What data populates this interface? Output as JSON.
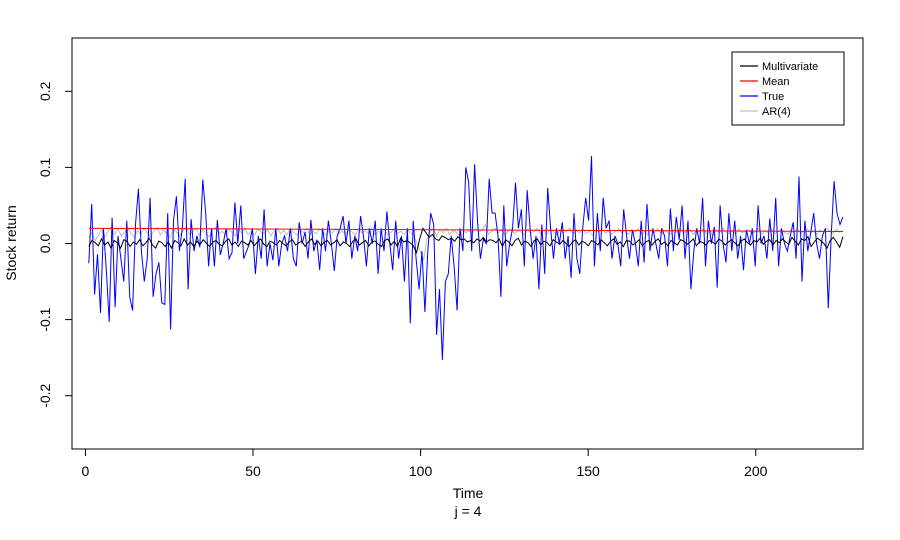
{
  "chart_data": {
    "type": "line",
    "xlabel": "Time",
    "sublabel": "j = 4",
    "ylabel": "Stock return",
    "xlim": [
      -4,
      232
    ],
    "ylim": [
      -0.27,
      0.27
    ],
    "xticks": [
      0,
      50,
      100,
      150,
      200
    ],
    "yticks": [
      -0.2,
      -0.1,
      0.0,
      0.1,
      0.2
    ],
    "xtick_labels": [
      "0",
      "50",
      "100",
      "150",
      "200"
    ],
    "ytick_labels": [
      "-0.2",
      "-0.1",
      "0.0",
      "0.1",
      "0.2"
    ],
    "grid": false,
    "legend_position": "top-right",
    "series": [
      {
        "name": "Multivariate",
        "color": "#000000",
        "values": [
          -0.004,
          0.004,
          0.001,
          -0.003,
          0.006,
          -0.002,
          0.002,
          -0.006,
          0.004,
          0.001,
          -0.006,
          0.005,
          0.003,
          -0.004,
          0.002,
          -0.001,
          0.005,
          -0.003,
          0.001,
          0.007,
          -0.002,
          -0.006,
          0.003,
          0.001,
          -0.004,
          0.002,
          -0.006,
          0.004,
          0.001,
          -0.003,
          0.006,
          -0.002,
          0.002,
          -0.004,
          0.003,
          -0.001,
          0.005,
          0.0,
          -0.004,
          0.002,
          0.004,
          -0.001,
          -0.003,
          0.003,
          0.006,
          -0.002,
          0.002,
          -0.004,
          0.003,
          0.001,
          -0.002,
          0.004,
          -0.003,
          0.002,
          0.006,
          -0.001,
          -0.004,
          0.003,
          0.001,
          -0.002,
          0.004,
          0.0,
          -0.003,
          0.002,
          0.005,
          -0.002,
          0.001,
          0.003,
          -0.004,
          0.002,
          0.006,
          -0.001,
          0.003,
          -0.003,
          0.002,
          0.004,
          -0.002,
          0.001,
          0.005,
          -0.003,
          0.002,
          0.0,
          -0.004,
          0.003,
          0.006,
          -0.002,
          0.001,
          0.004,
          -0.003,
          0.002,
          0.003,
          -0.001,
          -0.004,
          0.004,
          0.006,
          -0.002,
          0.003,
          -0.004,
          0.007,
          0.002,
          0.004,
          0.001,
          -0.003,
          -0.012,
          0.006,
          0.02,
          0.014,
          0.008,
          0.012,
          0.006,
          0.004,
          0.01,
          0.008,
          0.005,
          0.007,
          0.003,
          0.009,
          0.005,
          0.006,
          0.002,
          0.004,
          0.001,
          0.006,
          0.003,
          0.008,
          0.002,
          0.005,
          0.004,
          0.001,
          0.006,
          -0.004,
          0.005,
          0.002,
          -0.003,
          0.004,
          0.007,
          -0.002,
          0.003,
          0.001,
          -0.004,
          0.004,
          0.006,
          -0.002,
          0.003,
          0.001,
          -0.003,
          0.005,
          0.002,
          -0.001,
          0.004,
          0.0,
          -0.004,
          0.002,
          0.005,
          -0.002,
          0.003,
          0.001,
          -0.003,
          0.004,
          0.002,
          -0.002,
          0.005,
          0.001,
          -0.003,
          0.003,
          0.006,
          -0.001,
          0.002,
          -0.004,
          0.004,
          0.003,
          -0.002,
          0.001,
          0.005,
          -0.003,
          0.002,
          0.004,
          -0.002,
          0.003,
          0.006,
          -0.001,
          0.002,
          -0.003,
          0.004,
          0.001,
          -0.002,
          0.005,
          0.003,
          -0.001,
          0.002,
          0.006,
          -0.003,
          0.003,
          0.001,
          -0.002,
          0.004,
          0.002,
          -0.001,
          0.006,
          0.003,
          -0.002,
          0.002,
          0.005,
          0.001,
          -0.003,
          0.003,
          0.006,
          0.001,
          -0.002,
          0.004,
          0.002,
          0.007,
          -0.001,
          0.003,
          0.005,
          -0.002,
          0.004,
          0.001,
          0.006,
          0.002,
          -0.001,
          0.008,
          0.003,
          -0.002,
          0.006,
          0.004,
          0.009,
          -0.004,
          0.002,
          0.007,
          0.004,
          0.0,
          -0.006,
          0.004,
          0.008,
          0.002,
          -0.005,
          0.009
        ]
      },
      {
        "name": "Mean",
        "color": "#ff0000",
        "values": [
          0.02,
          0.0158
        ]
      },
      {
        "name": "True",
        "color": "#0000ff",
        "values": [
          -0.026,
          0.052,
          -0.067,
          -0.014,
          -0.091,
          0.02,
          -0.034,
          -0.103,
          0.034,
          -0.084,
          0.01,
          -0.02,
          -0.05,
          0.03,
          -0.07,
          -0.088,
          0.025,
          0.072,
          -0.01,
          -0.05,
          -0.02,
          0.06,
          -0.07,
          -0.04,
          -0.025,
          -0.078,
          -0.08,
          0.04,
          -0.113,
          0.03,
          0.062,
          -0.01,
          0.02,
          0.085,
          -0.06,
          0.032,
          -0.01,
          0.01,
          -0.005,
          0.084,
          0.04,
          -0.03,
          0.02,
          -0.03,
          0.031,
          -0.015,
          0.0,
          0.02,
          -0.02,
          -0.012,
          0.054,
          0.0,
          0.05,
          -0.02,
          -0.01,
          0.0,
          0.02,
          -0.04,
          0.01,
          -0.02,
          0.045,
          -0.03,
          0.0,
          -0.022,
          0.02,
          -0.03,
          0.0,
          0.01,
          -0.01,
          0.02,
          -0.02,
          -0.03,
          0.028,
          0.0,
          0.015,
          -0.02,
          0.031,
          -0.01,
          0.005,
          -0.035,
          0.02,
          -0.01,
          0.03,
          0.0,
          -0.036,
          0.01,
          0.02,
          0.036,
          0.0,
          0.03,
          -0.02,
          0.01,
          -0.01,
          0.036,
          0.01,
          -0.03,
          0.02,
          0.0,
          0.03,
          -0.04,
          0.02,
          -0.01,
          0.042,
          0.0,
          -0.035,
          0.03,
          -0.02,
          0.01,
          -0.05,
          0.02,
          -0.105,
          0.03,
          -0.02,
          -0.06,
          -0.01,
          -0.09,
          -0.01,
          0.04,
          0.025,
          -0.12,
          -0.06,
          -0.153,
          -0.05,
          -0.04,
          0.01,
          -0.03,
          -0.088,
          0.02,
          -0.01,
          0.1,
          0.08,
          -0.01,
          0.104,
          0.03,
          -0.02,
          0.006,
          0.0,
          0.085,
          0.04,
          0.04,
          0.01,
          -0.07,
          0.05,
          -0.03,
          0.0,
          0.02,
          0.08,
          0.02,
          0.045,
          -0.03,
          0.07,
          0.02,
          -0.02,
          0.01,
          -0.06,
          0.025,
          -0.04,
          0.073,
          0.02,
          -0.02,
          0.02,
          0.0,
          0.028,
          -0.02,
          0.01,
          -0.045,
          0.04,
          -0.02,
          -0.04,
          0.02,
          0.06,
          0.03,
          0.115,
          -0.03,
          0.04,
          -0.01,
          0.06,
          0.02,
          0.03,
          -0.02,
          0.01,
          0.0,
          -0.03,
          0.045,
          0.01,
          -0.02,
          0.018,
          0.0,
          -0.03,
          0.03,
          -0.025,
          0.052,
          -0.01,
          0.02,
          0.0,
          -0.02,
          0.02,
          0.01,
          -0.03,
          0.046,
          -0.01,
          0.035,
          0.005,
          0.05,
          -0.02,
          0.03,
          -0.06,
          -0.01,
          0.02,
          0.0,
          0.06,
          -0.03,
          0.03,
          0.0,
          0.022,
          -0.058,
          0.05,
          0.0,
          -0.025,
          0.04,
          -0.01,
          0.03,
          -0.02,
          0.01,
          -0.035,
          0.018,
          0.0,
          0.02,
          -0.03,
          0.05,
          0.0,
          0.01,
          -0.02,
          0.033,
          -0.01,
          0.06,
          -0.03,
          0.02,
          0.0,
          -0.01,
          0.01,
          0.028,
          -0.02,
          0.088,
          -0.05,
          0.03,
          -0.01,
          0.014,
          0.04,
          0.0,
          -0.02,
          0.01,
          0.02,
          -0.085,
          0.01,
          0.082,
          0.04,
          0.025,
          0.035
        ]
      },
      {
        "name": "AR(4)",
        "color": "#bebebe",
        "values": [
          0.008,
          0.014,
          0.004,
          0.011,
          0.018,
          0.009,
          0.016,
          0.022,
          0.012,
          0.019,
          0.01,
          0.015,
          0.02,
          0.013,
          0.008,
          0.017,
          0.012,
          0.02,
          0.014,
          0.009,
          0.016,
          0.021,
          0.011,
          0.018,
          0.013,
          0.008,
          0.019,
          0.015,
          0.01,
          0.017,
          0.022,
          0.012,
          0.016,
          0.02,
          0.011,
          0.018,
          0.014,
          0.009,
          0.017,
          0.021,
          0.013,
          0.016,
          0.011,
          0.019,
          0.015,
          0.01,
          0.018,
          0.014,
          0.02,
          0.012,
          0.016,
          0.011,
          0.019,
          0.015,
          0.013,
          0.018,
          0.01,
          0.016,
          0.02,
          0.013,
          0.017,
          0.012,
          0.019,
          0.015,
          0.011,
          0.018,
          0.014,
          0.02,
          0.012,
          0.016,
          0.013,
          0.019,
          0.015,
          0.011,
          0.017,
          0.014,
          0.02,
          0.013,
          0.016,
          0.012,
          0.018,
          0.015,
          0.011,
          0.019,
          0.014,
          0.017,
          0.013,
          0.02,
          0.012,
          0.016,
          0.014,
          0.018,
          0.011,
          0.015,
          0.019,
          0.013,
          0.016,
          0.012,
          0.018,
          0.014,
          0.01,
          0.0,
          -0.01,
          -0.022,
          0.005,
          0.015,
          0.02,
          0.01,
          0.018,
          0.014,
          0.02,
          0.012,
          0.017,
          0.015,
          0.011,
          0.019,
          0.014,
          0.017,
          0.013,
          0.02,
          0.015,
          0.018,
          0.025,
          0.012,
          0.016,
          0.02,
          0.014,
          0.018,
          0.011,
          0.016,
          0.019,
          0.013,
          0.017,
          0.015,
          0.012,
          0.018,
          0.014,
          0.016,
          0.02,
          0.013,
          0.017,
          0.012,
          0.019,
          0.015,
          0.011,
          0.018,
          0.014,
          0.016,
          0.02,
          0.012,
          0.017,
          0.014,
          0.019,
          0.013,
          0.016,
          0.011,
          0.018,
          0.015,
          0.02,
          0.013,
          0.017,
          0.012,
          0.016,
          0.019,
          0.014,
          0.017,
          0.012,
          0.018,
          0.015,
          0.02,
          0.013,
          0.016,
          0.011,
          0.018,
          0.014,
          0.019,
          0.013,
          0.017,
          0.015,
          0.012,
          0.018,
          0.014,
          0.02,
          0.013,
          0.016,
          0.018,
          0.012,
          0.017,
          0.015,
          0.019,
          0.013,
          0.016,
          0.011,
          0.018,
          0.014,
          0.02,
          0.015,
          0.013,
          0.017,
          0.012,
          0.019,
          0.014,
          0.016,
          0.018,
          0.013,
          0.015,
          0.02,
          0.012,
          0.017,
          0.014,
          0.019,
          0.013,
          0.016,
          0.018,
          0.015,
          0.012,
          0.017,
          0.014,
          0.02,
          0.013,
          0.016,
          0.019,
          0.014,
          0.017,
          0.012,
          0.018,
          0.015,
          0.02,
          0.016,
          0.013,
          0.019,
          0.015,
          0.017
        ]
      }
    ]
  }
}
